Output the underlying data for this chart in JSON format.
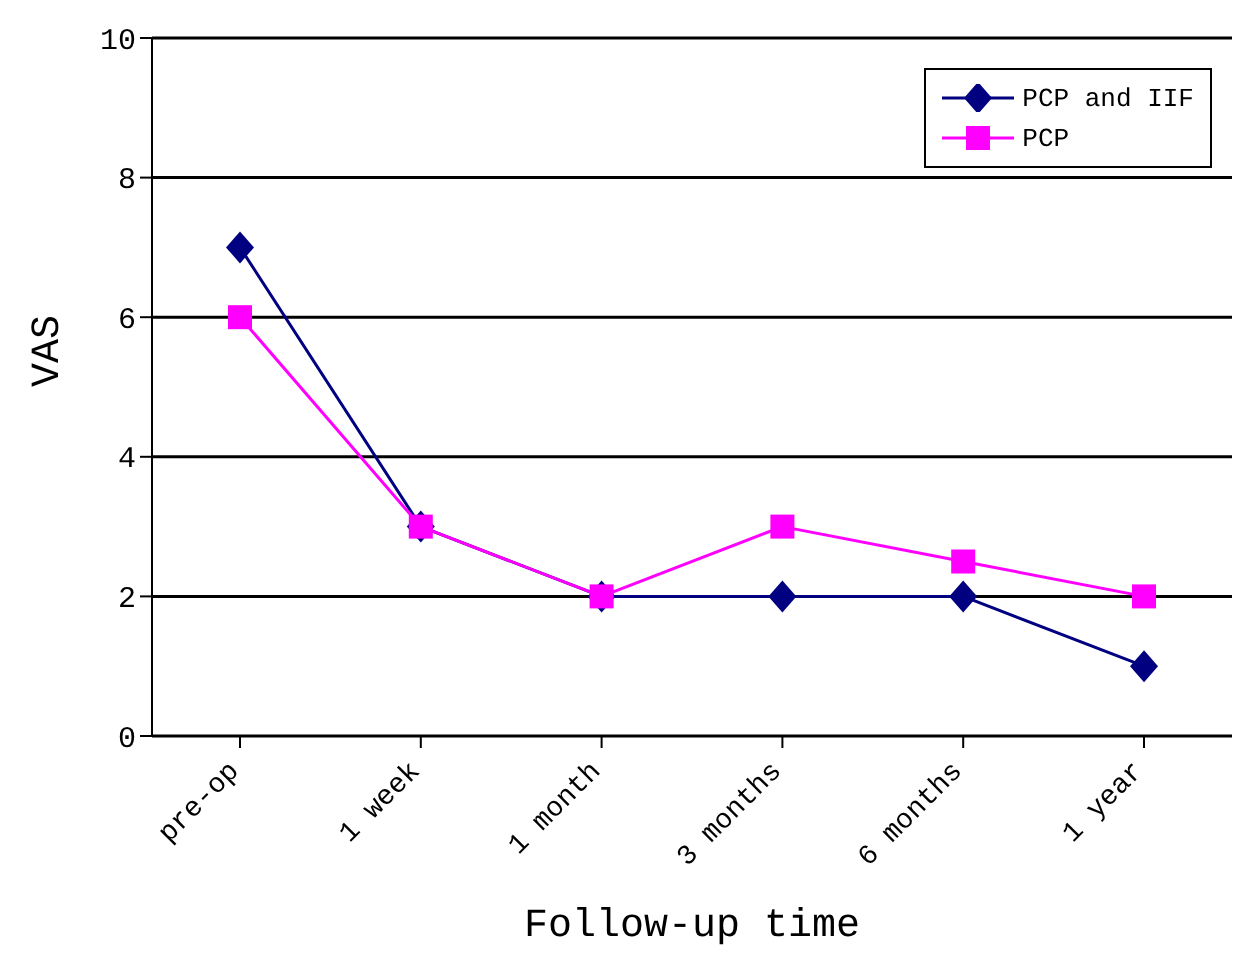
{
  "chart_data": {
    "type": "line",
    "xlabel": "Follow-up time",
    "ylabel": "VAS",
    "categories": [
      "pre-op",
      "1 week",
      "1 month",
      "3 months",
      "6 months",
      "1 year"
    ],
    "series": [
      {
        "name": "PCP and IIF",
        "color": "#000080",
        "values": [
          7,
          3,
          2,
          2,
          2,
          1
        ],
        "marker": "diamond"
      },
      {
        "name": "PCP",
        "color": "#ff00ff",
        "values": [
          6,
          3,
          2,
          3,
          2.5,
          2
        ],
        "marker": "square"
      }
    ],
    "ylim": [
      0,
      10
    ],
    "yticks": [
      0,
      2,
      4,
      6,
      8,
      10
    ],
    "grid": "y",
    "legend": "top right",
    "line_style": "solid"
  }
}
